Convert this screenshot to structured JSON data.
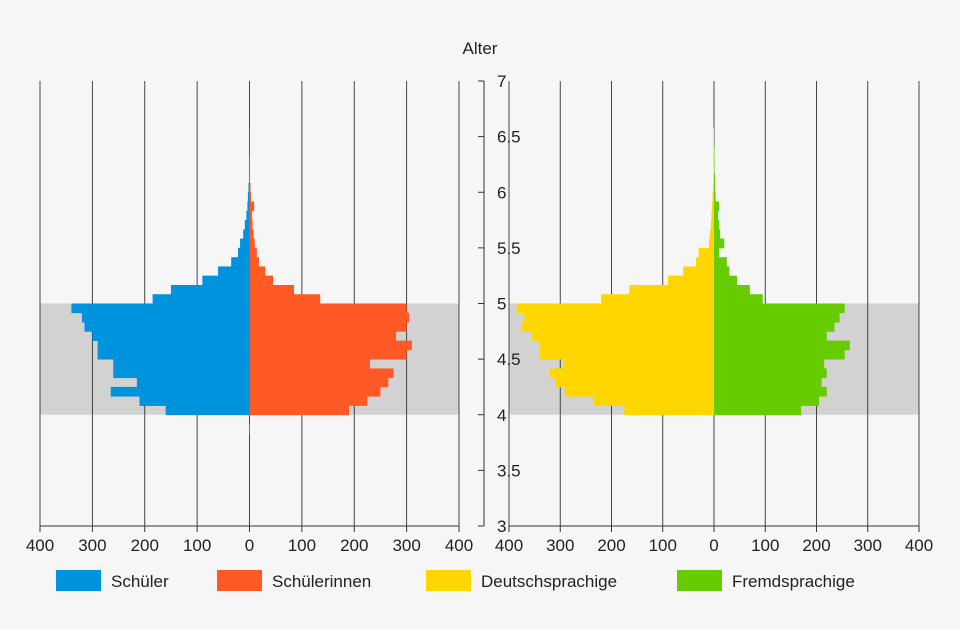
{
  "chart_data": {
    "type": "bar",
    "orientation": "horizontal",
    "layout": "two population pyramids sharing a central age axis",
    "y_axis": {
      "label": "Alter",
      "range": [
        3,
        7
      ],
      "ticks": [
        "3",
        "3.5",
        "4",
        "4.5",
        "5",
        "5.5",
        "6",
        "6.5",
        "7"
      ],
      "tick_values": [
        3,
        3.5,
        4,
        4.5,
        5,
        5.5,
        6,
        6.5,
        7
      ]
    },
    "x_axis": {
      "range": [
        -400,
        400
      ],
      "ticks": [
        "400",
        "300",
        "200",
        "100",
        "0",
        "100",
        "200",
        "300",
        "400"
      ],
      "tick_values": [
        -400,
        -300,
        -200,
        -100,
        0,
        100,
        200,
        300,
        400
      ]
    },
    "highlight_band": {
      "from": 4,
      "to": 5,
      "color": "#d2d2d2"
    },
    "bin_width": 0.0833,
    "bin_starts": [
      3.833,
      3.917,
      4.0,
      4.083,
      4.167,
      4.25,
      4.333,
      4.417,
      4.5,
      4.583,
      4.667,
      4.75,
      4.833,
      4.917,
      5.0,
      5.083,
      5.167,
      5.25,
      5.333,
      5.417,
      5.5,
      5.583,
      5.667,
      5.75,
      5.833,
      5.917,
      6.0,
      6.083,
      6.167,
      6.25,
      6.333,
      6.417,
      6.5
    ],
    "grid": true,
    "legend_position": "bottom",
    "panels": [
      {
        "series": [
          {
            "name": "Schüler",
            "side": "left",
            "color": "#0093dd",
            "values": [
              1,
              0,
              160,
              210,
              265,
              215,
              260,
              260,
              290,
              290,
              300,
              315,
              320,
              340,
              185,
              150,
              90,
              60,
              35,
              22,
              18,
              12,
              9,
              6,
              4,
              3,
              2,
              1,
              1,
              1,
              1,
              1,
              1
            ]
          },
          {
            "name": "Schülerinnen",
            "side": "right",
            "color": "#ff5a25",
            "values": [
              1,
              0,
              190,
              225,
              250,
              265,
              275,
              230,
              300,
              310,
              280,
              300,
              305,
              300,
              135,
              85,
              45,
              30,
              18,
              14,
              10,
              8,
              6,
              5,
              9,
              3,
              2,
              1,
              1,
              1,
              0,
              0,
              0
            ]
          }
        ]
      },
      {
        "series": [
          {
            "name": "Deutschsprachige",
            "side": "left",
            "color": "#ffd600",
            "values": [
              0,
              0,
              175,
              235,
              290,
              310,
              320,
              295,
              340,
              340,
              355,
              375,
              370,
              385,
              220,
              165,
              90,
              60,
              35,
              30,
              10,
              8,
              6,
              5,
              4,
              3,
              2,
              1,
              1,
              1,
              1,
              1,
              1
            ]
          },
          {
            "name": "Fremdsprachige",
            "side": "right",
            "color": "#66cc00",
            "values": [
              0,
              0,
              170,
              205,
              220,
              210,
              220,
              215,
              255,
              265,
              220,
              235,
              245,
              255,
              95,
              70,
              45,
              30,
              25,
              10,
              20,
              12,
              10,
              8,
              10,
              3,
              2,
              2,
              1,
              1,
              1,
              0,
              0
            ]
          }
        ]
      }
    ]
  }
}
